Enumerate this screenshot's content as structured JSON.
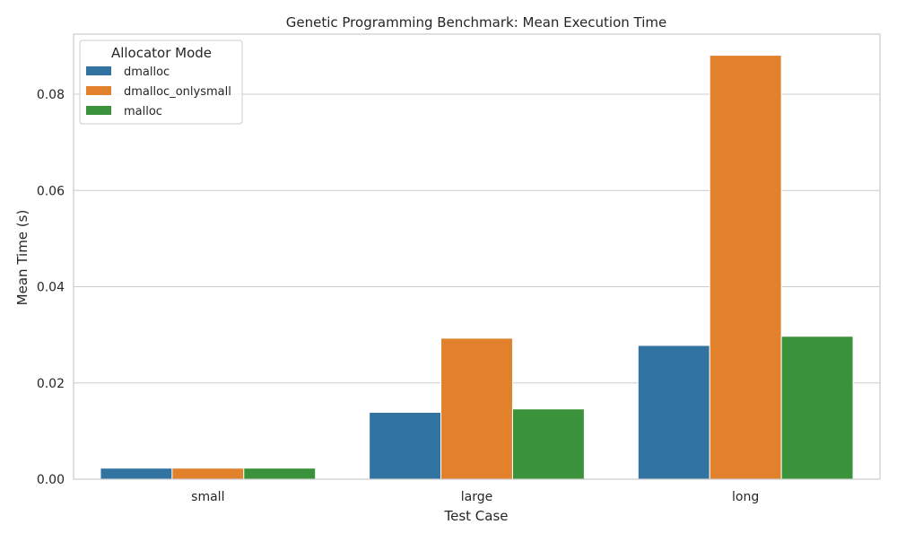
{
  "chart_data": {
    "type": "bar",
    "title": "Genetic Programming Benchmark: Mean Execution Time",
    "xlabel": "Test Case",
    "ylabel": "Mean Time (s)",
    "categories": [
      "small",
      "large",
      "long"
    ],
    "series": [
      {
        "name": "dmalloc",
        "color": "#3274a1",
        "values": [
          0.0023,
          0.0139,
          0.0278
        ]
      },
      {
        "name": "dmalloc_onlysmall",
        "color": "#e1812c",
        "values": [
          0.0023,
          0.0293,
          0.0881
        ]
      },
      {
        "name": "malloc",
        "color": "#3a923a",
        "values": [
          0.0023,
          0.0146,
          0.0297
        ]
      }
    ],
    "ylim": [
      0,
      0.0925
    ],
    "yticks": [
      0.0,
      0.02,
      0.04,
      0.06,
      0.08
    ],
    "ytick_labels": [
      "0.00",
      "0.02",
      "0.04",
      "0.06",
      "0.08"
    ],
    "grid": true,
    "legend": {
      "title": "Allocator Mode",
      "position": "top-left"
    }
  }
}
